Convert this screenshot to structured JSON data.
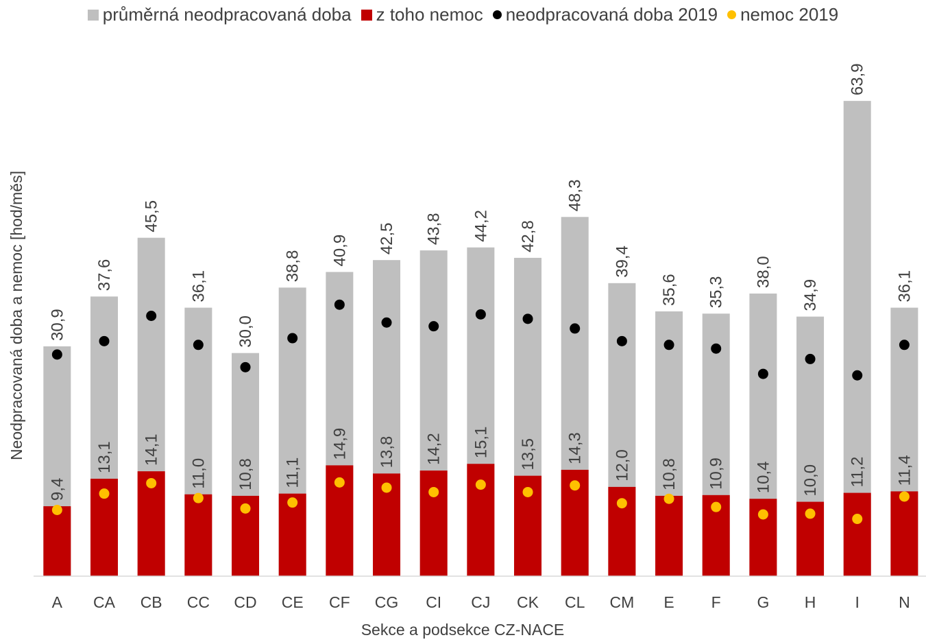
{
  "chart_data": {
    "type": "bar",
    "x_label": "Sekce a podsekce CZ-NACE",
    "y_label": "Neodpracovaná doba a nemoc [hod/měs]",
    "categories": [
      "A",
      "CA",
      "CB",
      "CC",
      "CD",
      "CE",
      "CF",
      "CG",
      "CI",
      "CJ",
      "CK",
      "CL",
      "CM",
      "E",
      "F",
      "G",
      "H",
      "I",
      "N"
    ],
    "ylim": [
      0,
      70
    ],
    "series": [
      {
        "name": "průměrná neodpracovaná doba",
        "type": "bar",
        "color": "#bfbfbf",
        "values": [
          30.9,
          37.6,
          45.5,
          36.1,
          30.0,
          38.8,
          40.9,
          42.5,
          43.8,
          44.2,
          42.8,
          48.3,
          39.4,
          35.6,
          35.3,
          38.0,
          34.9,
          63.9,
          36.1
        ],
        "value_labels": [
          "30,9",
          "37,6",
          "45,5",
          "36,1",
          "30,0",
          "38,8",
          "40,9",
          "42,5",
          "43,8",
          "44,2",
          "42,8",
          "48,3",
          "39,4",
          "35,6",
          "35,3",
          "38,0",
          "34,9",
          "63,9",
          "36,1"
        ]
      },
      {
        "name": "z toho nemoc",
        "type": "bar",
        "color": "#c00000",
        "values": [
          9.4,
          13.1,
          14.1,
          11.0,
          10.8,
          11.1,
          14.9,
          13.8,
          14.2,
          15.1,
          13.5,
          14.3,
          12.0,
          10.8,
          10.9,
          10.4,
          10.0,
          11.2,
          11.4
        ],
        "value_labels": [
          "9,4",
          "13,1",
          "14,1",
          "11,0",
          "10,8",
          "11,1",
          "14,9",
          "13,8",
          "14,2",
          "15,1",
          "13,5",
          "14,3",
          "12,0",
          "10,8",
          "10,9",
          "10,4",
          "10,0",
          "11,2",
          "11,4"
        ]
      },
      {
        "name": "neodpracovaná doba 2019",
        "type": "scatter",
        "color": "#000000",
        "values": [
          29.8,
          31.6,
          35.0,
          31.1,
          28.1,
          32.0,
          36.5,
          34.1,
          33.6,
          35.2,
          34.6,
          33.3,
          31.6,
          31.1,
          30.6,
          27.2,
          29.2,
          27.0,
          31.1
        ]
      },
      {
        "name": "nemoc 2019",
        "type": "scatter",
        "color": "#ffc000",
        "values": [
          8.9,
          11.1,
          12.5,
          10.5,
          9.1,
          9.9,
          12.6,
          11.9,
          11.3,
          12.3,
          11.3,
          12.2,
          9.8,
          10.4,
          9.3,
          8.3,
          8.4,
          7.7,
          10.7
        ]
      }
    ]
  }
}
